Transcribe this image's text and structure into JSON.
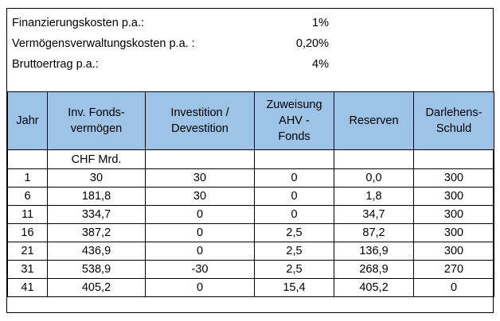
{
  "params": [
    {
      "label": "Finanzierungskosten p.a.:",
      "value": "1%"
    },
    {
      "label": "Vermögensverwaltungskosten p.a. :",
      "value": "0,20%"
    },
    {
      "label": "Bruttoertrag p.a.:",
      "value": "4%"
    }
  ],
  "table": {
    "headers": [
      {
        "lines": [
          "Jahr"
        ]
      },
      {
        "lines": [
          "Inv. Fonds-",
          "vermögen"
        ]
      },
      {
        "lines": [
          "Investition /",
          "Devestition"
        ]
      },
      {
        "lines": [
          "Zuweisung",
          "AHV -",
          "Fonds"
        ]
      },
      {
        "lines": [
          "Reserven"
        ]
      },
      {
        "lines": [
          "Darlehens-",
          "Schuld"
        ]
      }
    ],
    "unit_row": [
      "",
      "CHF Mrd.",
      "",
      "",
      "",
      ""
    ],
    "rows": [
      [
        "1",
        "30",
        "30",
        "0",
        "0,0",
        "300"
      ],
      [
        "6",
        "181,8",
        "30",
        "0",
        "1,8",
        "300"
      ],
      [
        "11",
        "334,7",
        "0",
        "0",
        "34,7",
        "300"
      ],
      [
        "16",
        "387,2",
        "0",
        "2,5",
        "87,2",
        "300"
      ],
      [
        "21",
        "436,9",
        "0",
        "2,5",
        "136,9",
        "300"
      ],
      [
        "31",
        "538,9",
        "-30",
        "2,5",
        "268,9",
        "270"
      ],
      [
        "41",
        "405,2",
        "0",
        "15,4",
        "405,2",
        "0"
      ]
    ]
  },
  "colors": {
    "header_bg": "#9dc3e6",
    "border": "#000000"
  }
}
